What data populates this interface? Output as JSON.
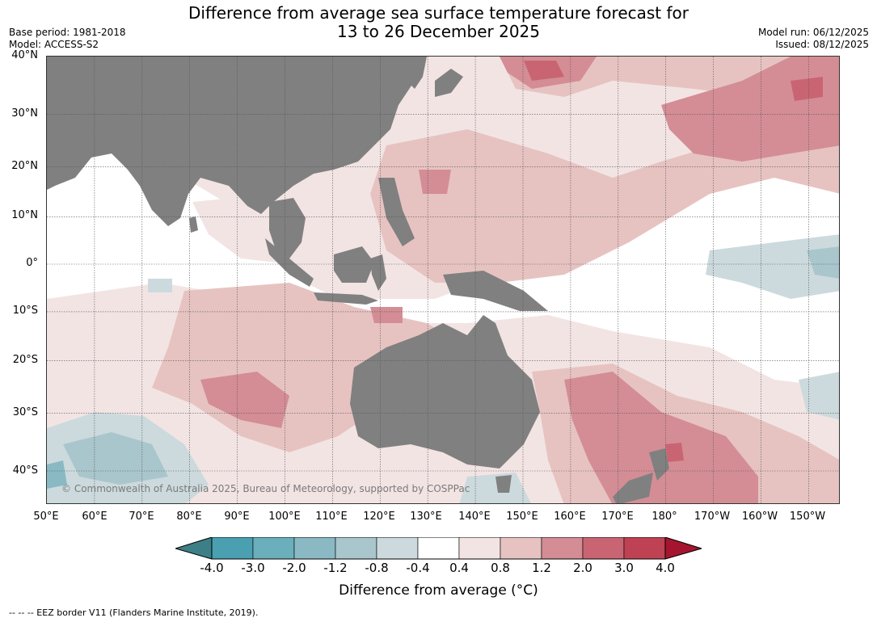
{
  "title": {
    "line1": "Difference from average sea surface temperature forecast for",
    "line2": "13 to 26 December 2025"
  },
  "meta_left": {
    "base_period": "Base period: 1981-2018",
    "model": "Model: ACCESS-S2"
  },
  "meta_right": {
    "model_run": "Model run: 06/12/2025",
    "issued": "Issued: 08/12/2025"
  },
  "map": {
    "lat_labels": [
      "40°N",
      "30°N",
      "20°N",
      "10°N",
      "0°",
      "10°S",
      "20°S",
      "30°S",
      "40°S"
    ],
    "lon_labels": [
      "50°E",
      "60°E",
      "70°E",
      "80°E",
      "90°E",
      "100°E",
      "110°E",
      "120°E",
      "130°E",
      "140°E",
      "150°E",
      "160°E",
      "170°E",
      "180°",
      "170°W",
      "160°W",
      "150°W"
    ],
    "land_color": "#808080",
    "copyright": "© Commonwealth of Australia 2025, Bureau of Meteorology, supported by COSPPac"
  },
  "colorbar": {
    "title": "Difference from average ($^\\circ$C)",
    "title_display": "Difference from average (°C)",
    "labels": [
      "-4.0",
      "-3.0",
      "-2.0",
      "-1.2",
      "-0.8",
      "-0.4",
      "0.4",
      "0.8",
      "1.2",
      "2.0",
      "3.0",
      "4.0"
    ],
    "under_color": "#3d7f86",
    "over_color": "#a5152f",
    "colors": [
      "#4aa0b1",
      "#6aafbb",
      "#8ab9c4",
      "#a9c6cc",
      "#ccdadd",
      "#ffffff",
      "#f3e4e4",
      "#e6c3c1",
      "#d48d95",
      "#c96572",
      "#be4254"
    ]
  },
  "footnote": "--  --  -- EEZ border V11 (Flanders Marine Institute, 2019)."
}
